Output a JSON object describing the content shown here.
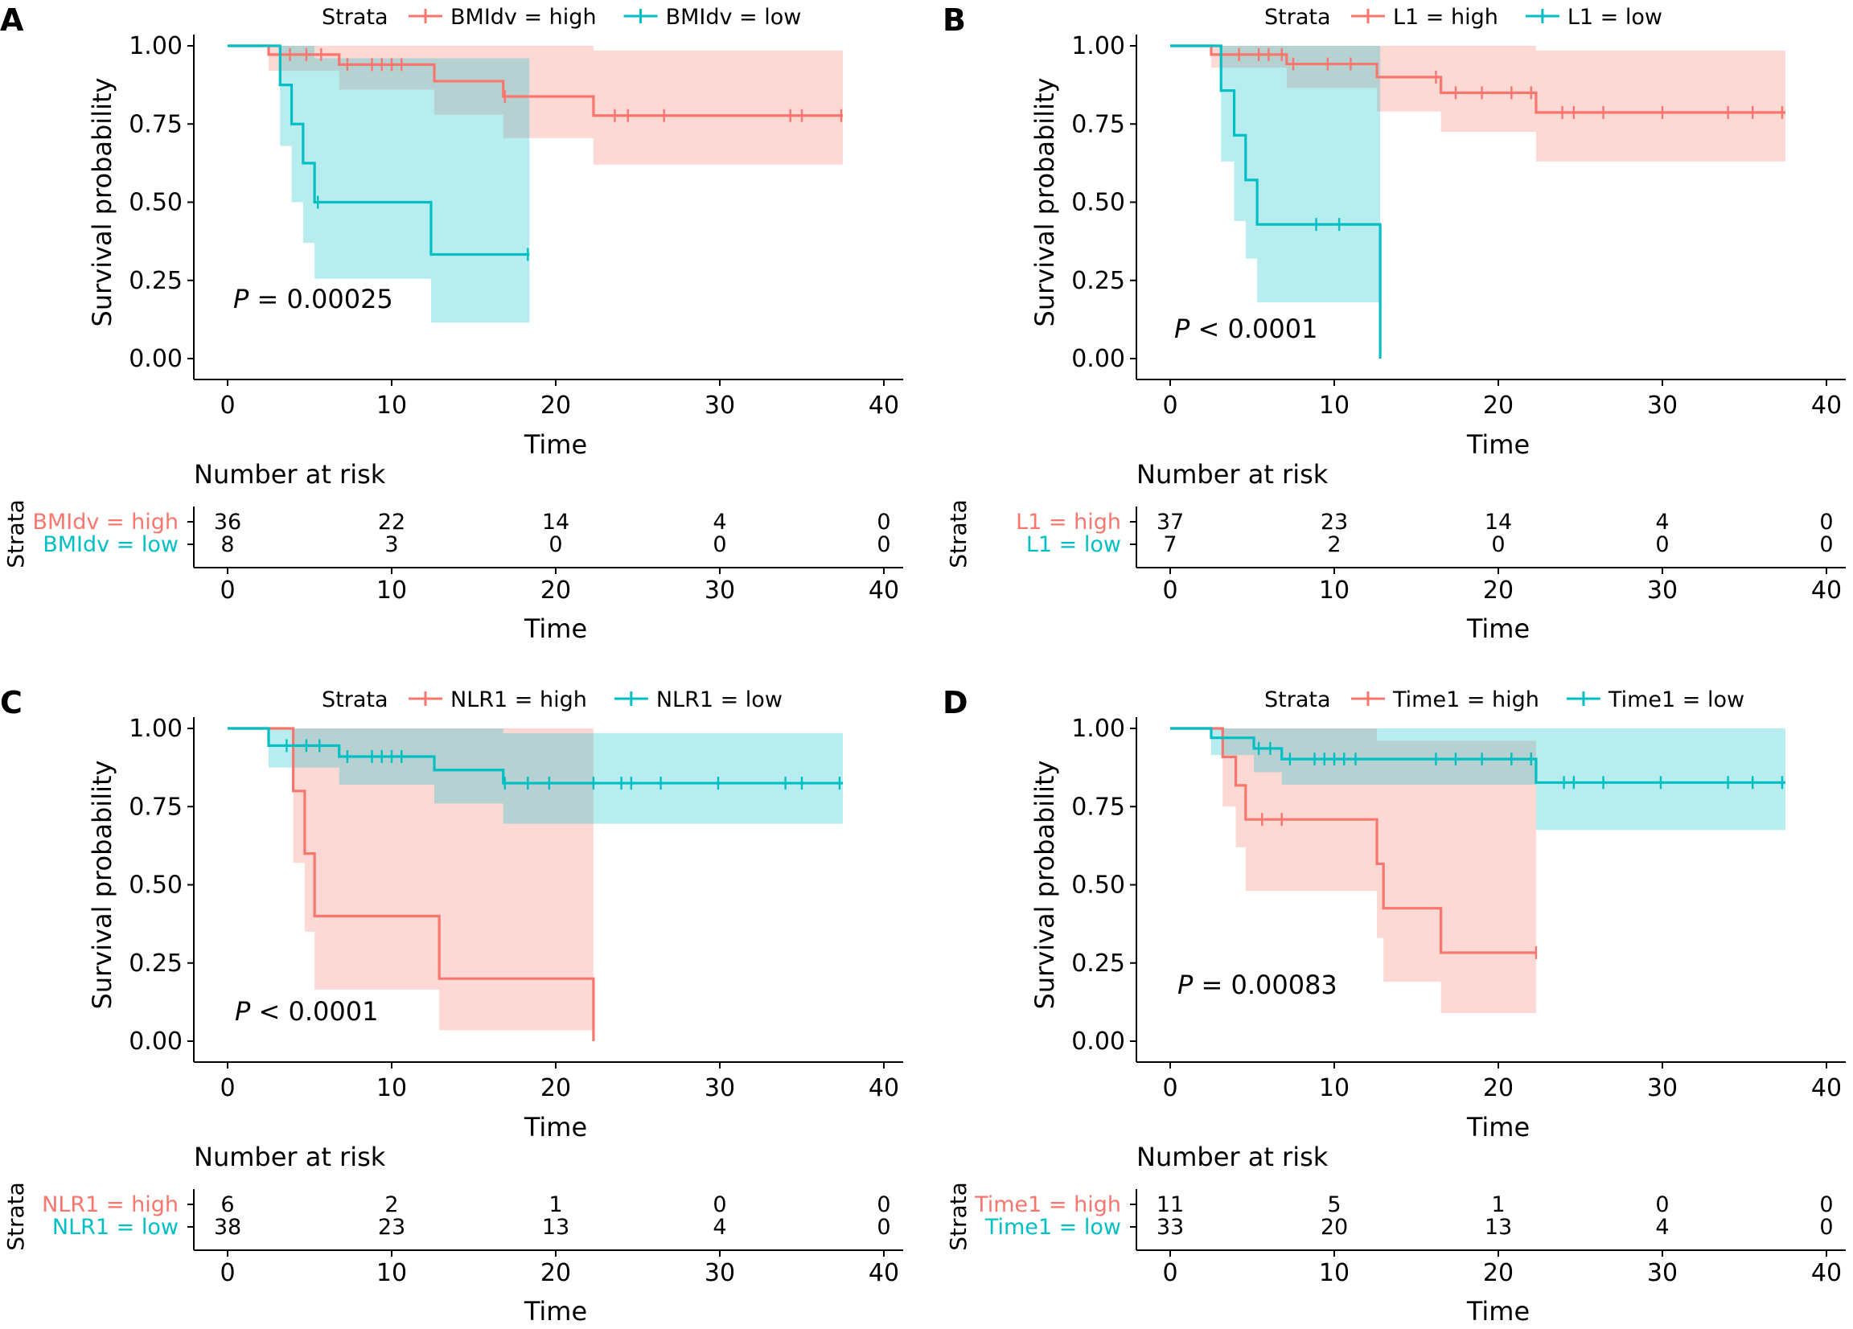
{
  "colors": {
    "high": "#F8766D",
    "low": "#00BFC4",
    "high_band": "#F8766D",
    "low_band": "#00BFC4",
    "axis": "#000000"
  },
  "labels": {
    "strata": "Strata",
    "y_axis": "Survival probability",
    "x_axis": "Time",
    "risk_title": "Number at risk",
    "risk_strata": "Strata"
  },
  "chart_data": [
    {
      "panel": "A",
      "type": "line",
      "x_label": "Time",
      "y_label": "Survival probability",
      "xlim": [
        0,
        40
      ],
      "ylim": [
        0,
        1
      ],
      "x_ticks": [
        "0",
        "10",
        "20",
        "30",
        "40"
      ],
      "y_ticks": [
        "0.00",
        "0.25",
        "0.50",
        "0.75",
        "1.00"
      ],
      "pvalue": "P = 0.00025",
      "legend_title": "Strata",
      "legend": [
        "BMIdv = high",
        "BMIdv = low"
      ],
      "series": [
        {
          "name": "BMIdv = high",
          "group": "high",
          "steps": [
            [
              0,
              1.0
            ],
            [
              2.5,
              0.972
            ],
            [
              6.8,
              0.94
            ],
            [
              12.6,
              0.887
            ],
            [
              16.8,
              0.838
            ],
            [
              22.3,
              0.777
            ],
            [
              37.5,
              0.777
            ]
          ],
          "band": [
            [
              0,
              1.0,
              1.0
            ],
            [
              2.5,
              0.92,
              1.0
            ],
            [
              6.8,
              0.86,
              1.0
            ],
            [
              12.6,
              0.78,
              1.0
            ],
            [
              16.8,
              0.705,
              1.0
            ],
            [
              22.3,
              0.62,
              0.985
            ],
            [
              37.5,
              0.62,
              0.985
            ]
          ],
          "censors": [
            3.8,
            4.8,
            5.7,
            7.3,
            8.8,
            9.4,
            10.0,
            10.6,
            16.9,
            23.6,
            24.4,
            26.6,
            34.3,
            35.0,
            37.4
          ]
        },
        {
          "name": "BMIdv = low",
          "group": "low",
          "steps": [
            [
              0,
              1.0
            ],
            [
              3.2,
              0.875
            ],
            [
              3.9,
              0.75
            ],
            [
              4.6,
              0.625
            ],
            [
              5.3,
              0.5
            ],
            [
              12.4,
              0.333
            ],
            [
              18.4,
              0.333
            ]
          ],
          "band": [
            [
              0,
              1.0,
              1.0
            ],
            [
              3.2,
              0.68,
              1.0
            ],
            [
              3.9,
              0.5,
              1.0
            ],
            [
              4.6,
              0.37,
              1.0
            ],
            [
              5.3,
              0.255,
              0.96
            ],
            [
              12.4,
              0.115,
              0.96
            ],
            [
              18.4,
              0.115,
              0.96
            ]
          ],
          "censors": [
            5.5,
            18.3
          ]
        }
      ],
      "risk_table": {
        "title": "Number at risk",
        "rows": [
          {
            "label": "BMIdv = high",
            "group": "high",
            "values": [
              "36",
              "22",
              "14",
              "4",
              "0"
            ]
          },
          {
            "label": "BMIdv = low",
            "group": "low",
            "values": [
              "8",
              "3",
              "0",
              "0",
              "0"
            ]
          }
        ],
        "x_ticks": [
          "0",
          "10",
          "20",
          "30",
          "40"
        ],
        "x_label": "Time"
      }
    },
    {
      "panel": "B",
      "type": "line",
      "x_label": "Time",
      "y_label": "Survival probability",
      "xlim": [
        0,
        40
      ],
      "ylim": [
        0,
        1
      ],
      "x_ticks": [
        "0",
        "10",
        "20",
        "30",
        "40"
      ],
      "y_ticks": [
        "0.00",
        "0.25",
        "0.50",
        "0.75",
        "1.00"
      ],
      "pvalue": "P < 0.0001",
      "legend_title": "Strata",
      "legend": [
        "L1 = high",
        "L1 = low"
      ],
      "series": [
        {
          "name": "L1 = high",
          "group": "high",
          "steps": [
            [
              0,
              1.0
            ],
            [
              2.5,
              0.972
            ],
            [
              7.1,
              0.942
            ],
            [
              12.6,
              0.9
            ],
            [
              16.5,
              0.85
            ],
            [
              22.3,
              0.787
            ],
            [
              37.5,
              0.787
            ]
          ],
          "band": [
            [
              0,
              1.0,
              1.0
            ],
            [
              2.5,
              0.93,
              1.0
            ],
            [
              7.1,
              0.865,
              1.0
            ],
            [
              12.6,
              0.79,
              1.0
            ],
            [
              16.5,
              0.725,
              1.0
            ],
            [
              22.3,
              0.63,
              0.985
            ],
            [
              37.5,
              0.63,
              0.985
            ]
          ],
          "censors": [
            4.2,
            5.4,
            6.0,
            6.8,
            7.5,
            9.6,
            11.0,
            16.2,
            17.4,
            19.0,
            20.8,
            22.0,
            23.9,
            24.6,
            26.4,
            30.0,
            34.0,
            35.5,
            37.3
          ]
        },
        {
          "name": "L1 = low",
          "group": "low",
          "steps": [
            [
              0,
              1.0
            ],
            [
              3.1,
              0.857
            ],
            [
              3.9,
              0.714
            ],
            [
              4.6,
              0.571
            ],
            [
              5.3,
              0.429
            ],
            [
              12.8,
              0.0
            ],
            [
              12.8,
              0.0
            ]
          ],
          "band": [
            [
              0,
              1.0,
              1.0
            ],
            [
              3.1,
              0.63,
              1.0
            ],
            [
              3.9,
              0.44,
              1.0
            ],
            [
              4.6,
              0.32,
              1.0
            ],
            [
              5.3,
              0.18,
              1.0
            ],
            [
              12.8,
              0.18,
              1.0
            ]
          ],
          "censors": [
            8.9,
            10.3
          ]
        }
      ],
      "risk_table": {
        "title": "Number at risk",
        "rows": [
          {
            "label": "L1 = high",
            "group": "high",
            "values": [
              "37",
              "23",
              "14",
              "4",
              "0"
            ]
          },
          {
            "label": "L1 = low",
            "group": "low",
            "values": [
              "7",
              "2",
              "0",
              "0",
              "0"
            ]
          }
        ],
        "x_ticks": [
          "0",
          "10",
          "20",
          "30",
          "40"
        ],
        "x_label": "Time"
      }
    },
    {
      "panel": "C",
      "type": "line",
      "x_label": "Time",
      "y_label": "Survival probability",
      "xlim": [
        0,
        40
      ],
      "ylim": [
        0,
        1
      ],
      "x_ticks": [
        "0",
        "10",
        "20",
        "30",
        "40"
      ],
      "y_ticks": [
        "0.00",
        "0.25",
        "0.50",
        "0.75",
        "1.00"
      ],
      "pvalue": "P < 0.0001",
      "legend_title": "Strata",
      "legend": [
        "NLR1 = high",
        "NLR1 = low"
      ],
      "series": [
        {
          "name": "NLR1 = high",
          "group": "high",
          "steps": [
            [
              0,
              1.0
            ],
            [
              4.0,
              0.8
            ],
            [
              4.7,
              0.6
            ],
            [
              5.3,
              0.4
            ],
            [
              12.9,
              0.2
            ],
            [
              22.3,
              0.0
            ],
            [
              22.3,
              0.0
            ]
          ],
          "band": [
            [
              0,
              1.0,
              1.0
            ],
            [
              4.0,
              0.57,
              1.0
            ],
            [
              4.7,
              0.35,
              1.0
            ],
            [
              5.3,
              0.165,
              1.0
            ],
            [
              12.9,
              0.035,
              1.0
            ],
            [
              22.3,
              0.035,
              1.0
            ]
          ],
          "censors": []
        },
        {
          "name": "NLR1 = low",
          "group": "low",
          "steps": [
            [
              0,
              1.0
            ],
            [
              2.5,
              0.945
            ],
            [
              6.8,
              0.91
            ],
            [
              12.6,
              0.867
            ],
            [
              16.8,
              0.825
            ],
            [
              37.5,
              0.825
            ]
          ],
          "band": [
            [
              0,
              1.0,
              1.0
            ],
            [
              2.5,
              0.875,
              1.0
            ],
            [
              6.8,
              0.82,
              1.0
            ],
            [
              12.6,
              0.76,
              1.0
            ],
            [
              16.8,
              0.695,
              0.985
            ],
            [
              37.5,
              0.695,
              0.985
            ]
          ],
          "censors": [
            3.6,
            4.8,
            5.6,
            7.3,
            8.8,
            9.4,
            10.0,
            10.6,
            16.9,
            18.3,
            19.6,
            22.3,
            24.0,
            24.6,
            26.4,
            29.9,
            34.0,
            35.0,
            37.3
          ]
        }
      ],
      "risk_table": {
        "title": "Number at risk",
        "rows": [
          {
            "label": "NLR1 = high",
            "group": "high",
            "values": [
              "6",
              "2",
              "1",
              "0",
              "0"
            ]
          },
          {
            "label": "NLR1 = low",
            "group": "low",
            "values": [
              "38",
              "23",
              "13",
              "4",
              "0"
            ]
          }
        ],
        "x_ticks": [
          "0",
          "10",
          "20",
          "30",
          "40"
        ],
        "x_label": "Time"
      }
    },
    {
      "panel": "D",
      "type": "line",
      "x_label": "Time",
      "y_label": "Survival probability",
      "xlim": [
        0,
        40
      ],
      "ylim": [
        0,
        1
      ],
      "x_ticks": [
        "0",
        "10",
        "20",
        "30",
        "40"
      ],
      "y_ticks": [
        "0.00",
        "0.25",
        "0.50",
        "0.75",
        "1.00"
      ],
      "pvalue": "P = 0.00083",
      "legend_title": "Strata",
      "legend": [
        "Time1 = high",
        "Time1 = low"
      ],
      "series": [
        {
          "name": "Time1 = high",
          "group": "high",
          "steps": [
            [
              0,
              1.0
            ],
            [
              3.2,
              0.909
            ],
            [
              4.0,
              0.818
            ],
            [
              4.6,
              0.709
            ],
            [
              12.6,
              0.567
            ],
            [
              13.0,
              0.425
            ],
            [
              16.5,
              0.283
            ],
            [
              22.3,
              0.283
            ]
          ],
          "band": [
            [
              0,
              1.0,
              1.0
            ],
            [
              3.2,
              0.75,
              1.0
            ],
            [
              4.0,
              0.62,
              1.0
            ],
            [
              4.6,
              0.48,
              1.0
            ],
            [
              12.6,
              0.33,
              0.96
            ],
            [
              13.0,
              0.19,
              0.96
            ],
            [
              16.5,
              0.09,
              0.96
            ],
            [
              22.3,
              0.09,
              0.96
            ]
          ],
          "censors": [
            5.6,
            6.8,
            22.3
          ]
        },
        {
          "name": "Time1 = low",
          "group": "low",
          "steps": [
            [
              0,
              1.0
            ],
            [
              2.5,
              0.97
            ],
            [
              5.1,
              0.936
            ],
            [
              6.8,
              0.902
            ],
            [
              22.3,
              0.827
            ],
            [
              37.5,
              0.827
            ]
          ],
          "band": [
            [
              0,
              1.0,
              1.0
            ],
            [
              2.5,
              0.915,
              1.0
            ],
            [
              5.1,
              0.86,
              1.0
            ],
            [
              6.8,
              0.82,
              1.0
            ],
            [
              22.3,
              0.675,
              1.0
            ],
            [
              37.5,
              0.675,
              1.0
            ]
          ],
          "censors": [
            5.4,
            6.1,
            7.3,
            8.8,
            9.4,
            10.0,
            10.6,
            11.3,
            16.2,
            17.4,
            19.0,
            20.8,
            22.0,
            24.0,
            24.6,
            26.4,
            29.9,
            34.0,
            35.5,
            37.3
          ]
        }
      ],
      "risk_table": {
        "title": "Number at risk",
        "rows": [
          {
            "label": "Time1 = high",
            "group": "high",
            "values": [
              "11",
              "5",
              "1",
              "0",
              "0"
            ]
          },
          {
            "label": "Time1 = low",
            "group": "low",
            "values": [
              "33",
              "20",
              "13",
              "4",
              "0"
            ]
          }
        ],
        "x_ticks": [
          "0",
          "10",
          "20",
          "30",
          "40"
        ],
        "x_label": "Time"
      }
    }
  ]
}
